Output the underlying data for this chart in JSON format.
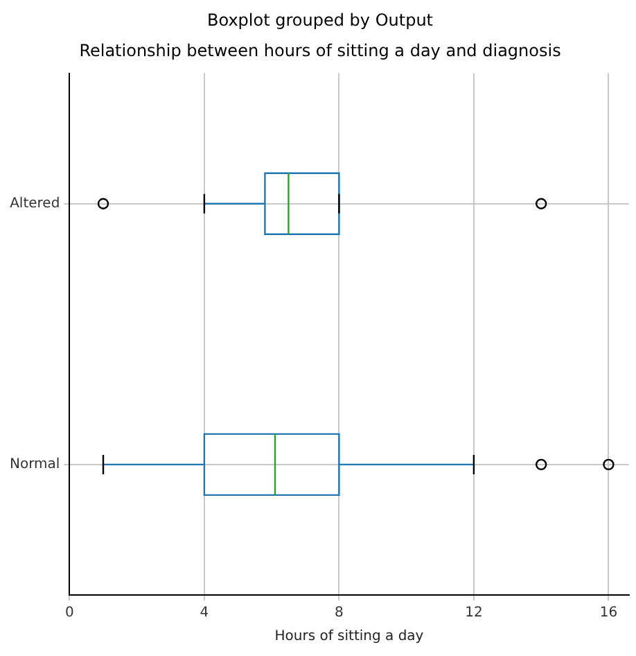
{
  "chart_data": {
    "type": "box",
    "orientation": "horizontal",
    "title": "Boxplot grouped by Output",
    "subtitle": "Relationship between hours of sitting a day and diagnosis",
    "xlabel": "Hours of sitting a day",
    "categories": [
      "Altered",
      "Normal"
    ],
    "color": "#1f77b4",
    "boxes": [
      {
        "low": 4,
        "q1": 5.8,
        "median": 6.5,
        "q3": 8,
        "high": 8,
        "outliers": [
          1,
          14
        ]
      },
      {
        "low": 1,
        "q1": 4,
        "median": 6.1,
        "q3": 8,
        "high": 12,
        "outliers": [
          14,
          16
        ]
      }
    ],
    "xlim": [
      0,
      16.6
    ],
    "xticks": [
      0,
      4,
      8,
      12,
      16
    ],
    "grid": true,
    "legend": false
  }
}
